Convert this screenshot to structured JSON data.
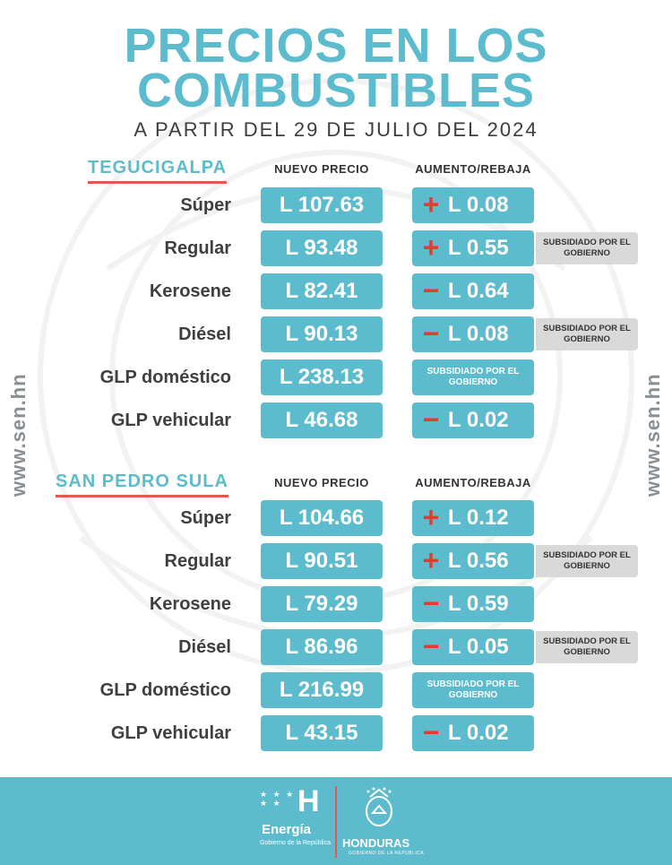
{
  "header": {
    "title_line1": "PRECIOS EN LOS",
    "title_line2": "COMBUSTIBLES",
    "subtitle": "A PARTIR DEL 29 DE JULIO DEL 2024"
  },
  "side_url": "www.sen.hn",
  "columns": {
    "price": "NUEVO PRECIO",
    "change": "AUMENTO/REBAJA"
  },
  "colors": {
    "accent": "#5cbccd",
    "increase": "#e43b2e",
    "underline": "#e05a4e",
    "note_bg": "#d9d9d9"
  },
  "cities": [
    {
      "name": "TEGUCIGALPA",
      "rows": [
        {
          "fuel": "Súper",
          "price": "L 107.63",
          "sign": "+",
          "change": "L  0.08",
          "note": ""
        },
        {
          "fuel": "Regular",
          "price": "L 93.48",
          "sign": "+",
          "change": "L 0.55",
          "note": "SUBSIDIADO POR EL GOBIERNO"
        },
        {
          "fuel": "Kerosene",
          "price": "L 82.41",
          "sign": "−",
          "change": "L 0.64",
          "note": ""
        },
        {
          "fuel": "Diésel",
          "price": "L 90.13",
          "sign": "−",
          "change": "L 0.08",
          "note": "SUBSIDIADO POR EL GOBIERNO"
        },
        {
          "fuel": "GLP doméstico",
          "price": "L 238.13",
          "sign": "",
          "change": "SUBSIDIADO POR EL GOBIERNO",
          "note": ""
        },
        {
          "fuel": "GLP vehicular",
          "price": "L 46.68",
          "sign": "−",
          "change": "L 0.02",
          "note": ""
        }
      ]
    },
    {
      "name": "SAN PEDRO SULA",
      "rows": [
        {
          "fuel": "Súper",
          "price": "L 104.66",
          "sign": "+",
          "change": "L 0.12",
          "note": ""
        },
        {
          "fuel": "Regular",
          "price": "L 90.51",
          "sign": "+",
          "change": "L 0.56",
          "note": "SUBSIDIADO POR EL GOBIERNO"
        },
        {
          "fuel": "Kerosene",
          "price": "L 79.29",
          "sign": "−",
          "change": "L 0.59",
          "note": ""
        },
        {
          "fuel": "Diésel",
          "price": "L 86.96",
          "sign": "−",
          "change": "L 0.05",
          "note": "SUBSIDIADO POR EL GOBIERNO"
        },
        {
          "fuel": "GLP doméstico",
          "price": "L 216.99",
          "sign": "",
          "change": "SUBSIDIADO POR EL GOBIERNO",
          "note": ""
        },
        {
          "fuel": "GLP vehicular",
          "price": "L 43.15",
          "sign": "−",
          "change": "L 0.02",
          "note": ""
        }
      ]
    }
  ],
  "footer": {
    "stars": "★ ★ ★ ★ ★",
    "mark": "H",
    "brand": "Energía",
    "brand_sub": "Gobierno de la República",
    "country": "HONDURAS",
    "country_sub": "GOBIERNO DE LA REPÚBLICA"
  }
}
